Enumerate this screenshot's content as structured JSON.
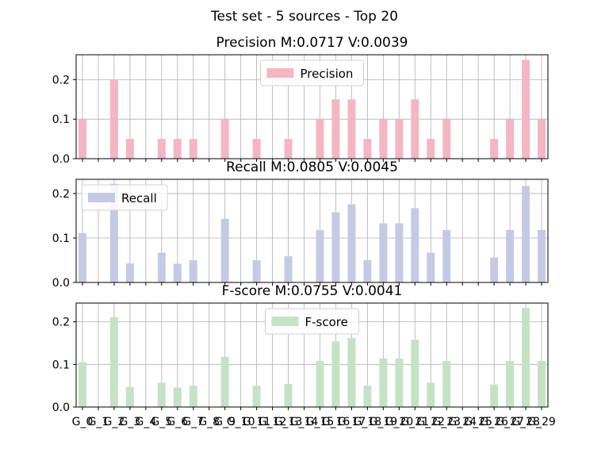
{
  "figure": {
    "suptitle": "Test set - 5 sources - Top 20"
  },
  "chart_data": [
    {
      "type": "bar",
      "title": "Precision M:0.0717 V:0.0039",
      "legend": "Precision",
      "legend_placement": "upper-center",
      "color": "#f4b6c2",
      "grid": true,
      "ylim": [
        0,
        0.263
      ],
      "yticks": [
        "0.0",
        "0.1",
        "0.2"
      ],
      "categories": [
        "G_0",
        "G_1",
        "G_2",
        "G_3",
        "G_4",
        "G_5",
        "G_6",
        "G_7",
        "G_8",
        "G_9",
        "G_10",
        "G_11",
        "G_12",
        "G_13",
        "G_14",
        "G_15",
        "G_16",
        "G_17",
        "G_18",
        "G_19",
        "G_20",
        "G_21",
        "G_22",
        "G_23",
        "G_24",
        "G_25",
        "G_26",
        "G_27",
        "G_28",
        "G_29"
      ],
      "values": [
        0.1,
        0,
        0.2,
        0.05,
        0,
        0.05,
        0.05,
        0.05,
        0,
        0.1,
        0,
        0.05,
        0,
        0.05,
        0,
        0.1,
        0.15,
        0.15,
        0.05,
        0.1,
        0.1,
        0.15,
        0.05,
        0.1,
        0,
        0,
        0.05,
        0.1,
        0.25,
        0.1
      ]
    },
    {
      "type": "bar",
      "title": "Recall M:0.0805 V:0.0045",
      "legend": "Recall",
      "legend_placement": "upper-left",
      "color": "#c5cae4",
      "grid": true,
      "ylim": [
        0,
        0.232
      ],
      "yticks": [
        "0.0",
        "0.1",
        "0.2"
      ],
      "categories": [
        "G_0",
        "G_1",
        "G_2",
        "G_3",
        "G_4",
        "G_5",
        "G_6",
        "G_7",
        "G_8",
        "G_9",
        "G_10",
        "G_11",
        "G_12",
        "G_13",
        "G_14",
        "G_15",
        "G_16",
        "G_17",
        "G_18",
        "G_19",
        "G_20",
        "G_21",
        "G_22",
        "G_23",
        "G_24",
        "G_25",
        "G_26",
        "G_27",
        "G_28",
        "G_29"
      ],
      "values": [
        0.111,
        0,
        0.222,
        0.043,
        0,
        0.067,
        0.042,
        0.05,
        0,
        0.143,
        0,
        0.05,
        0,
        0.059,
        0,
        0.118,
        0.158,
        0.176,
        0.05,
        0.133,
        0.133,
        0.167,
        0.067,
        0.118,
        0,
        0,
        0.056,
        0.118,
        0.217,
        0.118
      ]
    },
    {
      "type": "bar",
      "title": "F-score M:0.0755 V:0.0041",
      "legend": "F-score",
      "legend_placement": "upper-center",
      "color": "#c6e2c6",
      "grid": true,
      "ylim": [
        0,
        0.244
      ],
      "yticks": [
        "0.0",
        "0.1",
        "0.2"
      ],
      "categories": [
        "G_0",
        "G_1",
        "G_2",
        "G_3",
        "G_4",
        "G_5",
        "G_6",
        "G_7",
        "G_8",
        "G_9",
        "G_10",
        "G_11",
        "G_12",
        "G_13",
        "G_14",
        "G_15",
        "G_16",
        "G_17",
        "G_18",
        "G_19",
        "G_20",
        "G_21",
        "G_22",
        "G_23",
        "G_24",
        "G_25",
        "G_26",
        "G_27",
        "G_28",
        "G_29"
      ],
      "values": [
        0.105,
        0,
        0.211,
        0.047,
        0,
        0.057,
        0.046,
        0.05,
        0,
        0.118,
        0,
        0.05,
        0,
        0.054,
        0,
        0.108,
        0.154,
        0.162,
        0.05,
        0.114,
        0.114,
        0.158,
        0.057,
        0.108,
        0,
        0,
        0.053,
        0.108,
        0.233,
        0.108
      ]
    }
  ]
}
